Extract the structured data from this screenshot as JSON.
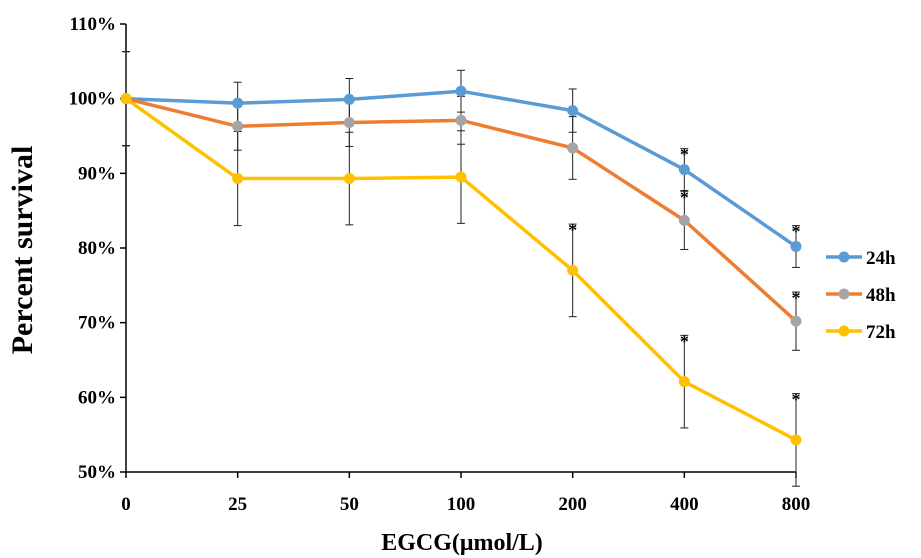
{
  "chart_data": {
    "type": "line",
    "title": "",
    "xlabel": "EGCG(μmol/L)",
    "ylabel": "Percent survival",
    "categories": [
      "0",
      "25",
      "50",
      "100",
      "200",
      "400",
      "800"
    ],
    "yticks": [
      "50%",
      "60%",
      "70%",
      "80%",
      "90%",
      "100%",
      "110%"
    ],
    "ylim": [
      50,
      110
    ],
    "grid": false,
    "legend_position": "right",
    "series": [
      {
        "name": "24h",
        "color": "#5B9BD5",
        "marker_color": "#5B9BD5",
        "values": [
          100,
          99.4,
          99.9,
          101.0,
          98.4,
          90.5,
          80.2
        ],
        "errors": [
          6.3,
          2.8,
          2.8,
          2.8,
          2.9,
          2.8,
          2.8
        ],
        "significant": [
          false,
          false,
          false,
          false,
          false,
          true,
          true
        ]
      },
      {
        "name": "48h",
        "color": "#ED7D31",
        "marker_color": "#A5A5A5",
        "values": [
          100,
          96.3,
          96.8,
          97.1,
          93.4,
          83.7,
          70.2
        ],
        "errors": [
          6.3,
          3.2,
          3.2,
          3.2,
          4.2,
          3.9,
          3.9
        ],
        "significant": [
          false,
          false,
          false,
          false,
          false,
          true,
          true
        ]
      },
      {
        "name": "72h",
        "color": "#FFC000",
        "marker_color": "#FFC000",
        "values": [
          100,
          89.3,
          89.3,
          89.5,
          77.0,
          62.1,
          54.3
        ],
        "errors": [
          6.3,
          6.3,
          6.2,
          6.2,
          6.2,
          6.2,
          6.2
        ],
        "significant": [
          false,
          false,
          false,
          false,
          true,
          true,
          true
        ]
      }
    ],
    "significance_marker": "*"
  }
}
